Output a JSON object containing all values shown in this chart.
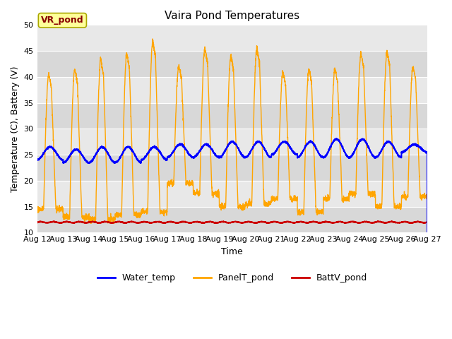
{
  "title": "Vaira Pond Temperatures",
  "xlabel": "Time",
  "ylabel": "Temperature (C), Battery (V)",
  "ylim": [
    10,
    50
  ],
  "yticks": [
    10,
    15,
    20,
    25,
    30,
    35,
    40,
    45,
    50
  ],
  "x_tick_labels": [
    "Aug 12",
    "Aug 13",
    "Aug 14",
    "Aug 15",
    "Aug 16",
    "Aug 17",
    "Aug 18",
    "Aug 19",
    "Aug 20",
    "Aug 21",
    "Aug 22",
    "Aug 23",
    "Aug 24",
    "Aug 25",
    "Aug 26",
    "Aug 27"
  ],
  "water_color": "#0000ff",
  "panel_color": "#ffa500",
  "batt_color": "#cc0000",
  "plot_bg_color": "#e8e8e8",
  "band_color_light": "#e8e8e8",
  "band_color_dark": "#d8d8d8",
  "fig_bg_color": "#ffffff",
  "annotation_text": "VR_pond",
  "annotation_bg": "#ffff99",
  "annotation_border": "#aaa800",
  "annotation_text_color": "#880000",
  "legend_labels": [
    "Water_temp",
    "PanelT_pond",
    "BattV_pond"
  ],
  "n_days": 15,
  "panel_peaks": [
    40.5,
    41.5,
    43.5,
    44.5,
    47.0,
    42.0,
    45.5,
    44.0,
    45.5,
    41.0,
    41.5,
    41.5,
    44.5,
    45.0,
    42.0
  ],
  "panel_troughs": [
    14.5,
    13.0,
    12.5,
    13.5,
    14.0,
    19.5,
    17.5,
    15.0,
    15.5,
    16.5,
    14.0,
    16.5,
    17.5,
    15.0,
    17.0
  ],
  "water_peaks": [
    26.5,
    26.0,
    26.5,
    26.5,
    26.5,
    27.0,
    27.0,
    27.5,
    27.5,
    27.5,
    27.5,
    28.0,
    28.0,
    27.5,
    27.0
  ],
  "water_troughs": [
    24.0,
    23.5,
    23.5,
    23.5,
    24.0,
    24.5,
    24.5,
    24.5,
    24.5,
    25.0,
    24.5,
    24.5,
    24.5,
    24.5,
    25.5
  ],
  "batt_value": 12.0
}
